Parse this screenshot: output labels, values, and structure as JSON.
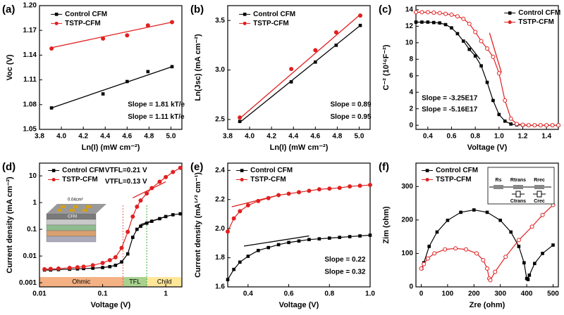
{
  "chart_data": [
    {
      "type": "scatter",
      "panel_label": "(a)",
      "x_label": "Ln(I) (mW cm⁻²)",
      "y_label": "Voc (V)",
      "xlim": [
        3.8,
        5.1
      ],
      "xticks": [
        3.8,
        {
          "value": 4,
          "label": "4.0"
        },
        4.2,
        4.4,
        4.6,
        4.8,
        {
          "value": 5,
          "label": "5.0"
        }
      ],
      "ylim": [
        1.05,
        1.2
      ],
      "yticks": [
        1.05,
        1.08,
        1.11,
        1.14,
        1.17,
        {
          "value": 1.2,
          "label": "1.20"
        }
      ],
      "series": [
        {
          "name": "Control CFM",
          "color": "#000000",
          "marker": "square",
          "x": [
            3.91,
            4.38,
            4.6,
            4.79,
            5.01
          ],
          "values": [
            1.076,
            1.093,
            1.108,
            1.12,
            1.126
          ],
          "fit": {
            "x": [
              3.91,
              5.01
            ],
            "values": [
              1.076,
              1.126
            ]
          }
        },
        {
          "name": "TSTP-CFM",
          "color": "#e02020",
          "marker": "circle",
          "x": [
            3.91,
            4.38,
            4.6,
            4.79,
            5.01
          ],
          "values": [
            1.148,
            1.16,
            1.164,
            1.176,
            1.18
          ],
          "fit": {
            "x": [
              3.91,
              5.01
            ],
            "values": [
              1.149,
              1.18
            ]
          }
        }
      ],
      "annotations": [
        {
          "text": "Slope = 1.81 kT/e",
          "color": "#000000"
        },
        {
          "text": "Slope = 1.11 kT/e",
          "color": "#e02020"
        }
      ]
    },
    {
      "type": "scatter",
      "panel_label": "(b)",
      "x_label": "Ln(I) (mW cm⁻²)",
      "y_label": "Ln(Jsc) (mA cm⁻²)",
      "xlim": [
        3.8,
        5.1
      ],
      "xticks": [
        3.8,
        {
          "value": 4,
          "label": "4.0"
        },
        4.2,
        4.4,
        4.6,
        4.8,
        {
          "value": 5,
          "label": "5.0"
        }
      ],
      "ylim": [
        2.4,
        3.65
      ],
      "yticks": [
        2.5,
        {
          "value": 3,
          "label": "3.0"
        },
        3.5
      ],
      "series": [
        {
          "name": "Control CFM",
          "color": "#000000",
          "marker": "square",
          "x": [
            3.91,
            4.38,
            4.6,
            4.79,
            5.01
          ],
          "values": [
            2.48,
            2.88,
            3.08,
            3.25,
            3.45
          ],
          "fit": {
            "x": [
              3.91,
              5.01
            ],
            "values": [
              2.47,
              3.45
            ]
          }
        },
        {
          "name": "TSTP-CFM",
          "color": "#e02020",
          "marker": "circle",
          "x": [
            3.91,
            4.38,
            4.6,
            4.79,
            5.01
          ],
          "values": [
            2.52,
            3.01,
            3.2,
            3.38,
            3.55
          ],
          "fit": {
            "x": [
              3.91,
              5.01
            ],
            "values": [
              2.51,
              3.56
            ]
          }
        }
      ],
      "annotations": [
        {
          "text": "Slope = 0.89",
          "color": "#000000"
        },
        {
          "text": "Slope = 0.95",
          "color": "#e02020"
        }
      ]
    },
    {
      "type": "line",
      "panel_label": "(c)",
      "x_label": "Voltage (V)",
      "y_label": "C⁻² (10¹⁶F⁻²)",
      "xlim": [
        0.3,
        1.5
      ],
      "xticks": [
        0.4,
        0.6,
        0.8,
        {
          "value": 1,
          "label": "1.0"
        },
        1.2,
        1.4
      ],
      "ylim": [
        -0.5,
        14.5
      ],
      "yticks": [
        0,
        2,
        4,
        6,
        8,
        10,
        12,
        14
      ],
      "series": [
        {
          "name": "Control CFM",
          "color": "#000000",
          "marker": "square",
          "x": [
            0.3,
            0.35,
            0.4,
            0.45,
            0.5,
            0.55,
            0.6,
            0.65,
            0.7,
            0.75,
            0.8,
            0.85,
            0.9,
            0.95,
            1.0,
            1.05,
            1.1,
            1.15,
            1.2,
            1.25,
            1.3,
            1.35,
            1.4,
            1.45,
            1.5
          ],
          "values": [
            12.5,
            12.5,
            12.5,
            12.45,
            12.4,
            12.2,
            11.8,
            11.1,
            10.2,
            9.2,
            8.4,
            7.2,
            5.2,
            3.0,
            1.3,
            0.5,
            0.15,
            0.05,
            0.02,
            0,
            0,
            0,
            0,
            0,
            0
          ],
          "fit": {
            "x": [
              0.72,
              0.84
            ],
            "values": [
              10.2,
              8.0
            ]
          }
        },
        {
          "name": "TSTP-CFM",
          "color": "#e02020",
          "marker": "circle",
          "x": [
            0.3,
            0.35,
            0.4,
            0.45,
            0.5,
            0.55,
            0.6,
            0.65,
            0.7,
            0.75,
            0.8,
            0.85,
            0.9,
            0.95,
            1.0,
            1.05,
            1.1,
            1.15,
            1.2,
            1.25,
            1.3,
            1.35,
            1.4,
            1.45,
            1.5
          ],
          "values": [
            13.7,
            13.7,
            13.7,
            13.65,
            13.6,
            13.5,
            13.4,
            13.2,
            12.9,
            12.3,
            11.3,
            10.2,
            9.3,
            8.3,
            6.3,
            3.0,
            0.8,
            0.15,
            0.05,
            0,
            0,
            0,
            0,
            0,
            0
          ],
          "fit": {
            "x": [
              0.92,
              1.02
            ],
            "values": [
              11.2,
              6.4
            ]
          }
        }
      ],
      "annotations": [
        {
          "text": "Slope = -3.25E17",
          "color": "#000000"
        },
        {
          "text": "Slope = -5.16E17",
          "color": "#e02020"
        }
      ]
    },
    {
      "type": "line",
      "panel_label": "(d)",
      "x_label": "Voltage (V)",
      "y_label": "Current density (mA cm⁻²)",
      "log_x": true,
      "log_y": true,
      "xlim": [
        0.01,
        1.8
      ],
      "xticks": [
        0.01,
        0.1,
        1
      ],
      "ylim": [
        0.0007,
        30
      ],
      "yticks": [
        0.001,
        0.01,
        0.1,
        1,
        10
      ],
      "series": [
        {
          "name": "Control CFM",
          "color": "#000000",
          "marker": "square",
          "x": [
            0.012,
            0.015,
            0.02,
            0.03,
            0.04,
            0.05,
            0.07,
            0.1,
            0.13,
            0.16,
            0.2,
            0.25,
            0.3,
            0.35,
            0.4,
            0.5,
            0.6,
            0.8,
            1.0,
            1.3,
            1.7
          ],
          "values": [
            0.003,
            0.003,
            0.0031,
            0.0032,
            0.0033,
            0.0034,
            0.0035,
            0.0037,
            0.004,
            0.0045,
            0.006,
            0.012,
            0.05,
            0.1,
            0.13,
            0.17,
            0.2,
            0.25,
            0.3,
            0.35,
            0.38
          ],
          "fit": {
            "x": [
              0.4,
              1.0
            ],
            "values": [
              0.15,
              0.3
            ]
          }
        },
        {
          "name": "TSTP-CFM",
          "color": "#e02020",
          "marker": "circle",
          "x": [
            0.012,
            0.015,
            0.02,
            0.03,
            0.04,
            0.05,
            0.07,
            0.1,
            0.13,
            0.16,
            0.2,
            0.25,
            0.3,
            0.35,
            0.4,
            0.5,
            0.6,
            0.8,
            1.0,
            1.3,
            1.7
          ],
          "values": [
            0.0032,
            0.0033,
            0.0034,
            0.0036,
            0.0038,
            0.004,
            0.0045,
            0.0055,
            0.007,
            0.009,
            0.02,
            0.08,
            0.3,
            0.7,
            1.2,
            2.2,
            3.5,
            6,
            9,
            14,
            20
          ],
          "fit": {
            "x": [
              0.3,
              1.0
            ],
            "values": [
              1.5,
              6
            ]
          }
        }
      ],
      "annotations": [
        {
          "text": "VTFL=0.21 V",
          "color": "#000000"
        },
        {
          "text": "VTFL=0.13 V",
          "color": "#e02020"
        }
      ],
      "regions": [
        {
          "label": "Ohmic",
          "from": 0.01,
          "to": 0.21,
          "color": "#f4b183"
        },
        {
          "label": "TFL",
          "from": 0.21,
          "to": 0.5,
          "color": "#a9d18e"
        },
        {
          "label": "Child",
          "from": 0.5,
          "to": 1.8,
          "color": "#ffe699"
        }
      ],
      "inset_labels": [
        "0.04cm²",
        "CFM"
      ]
    },
    {
      "type": "line",
      "panel_label": "(e)",
      "x_label": "Voltage (V)",
      "y_label": "Current density (mA¹ᐟ² cm⁻¹)",
      "xlim": [
        0.3,
        1.0
      ],
      "xticks": [
        0.4,
        0.6,
        0.8,
        {
          "value": 1,
          "label": "1.0"
        }
      ],
      "ylim": [
        1.6,
        2.45
      ],
      "yticks": [
        1.6,
        1.8,
        {
          "value": 2,
          "label": "2.0"
        },
        2.2,
        2.4
      ],
      "series": [
        {
          "name": "Control CFM",
          "color": "#000000",
          "marker": "square",
          "x": [
            0.3,
            0.33,
            0.36,
            0.4,
            0.45,
            0.5,
            0.55,
            0.6,
            0.65,
            0.7,
            0.75,
            0.8,
            0.85,
            0.9,
            0.95,
            1.0
          ],
          "values": [
            1.65,
            1.72,
            1.77,
            1.81,
            1.85,
            1.87,
            1.89,
            1.905,
            1.915,
            1.925,
            1.93,
            1.935,
            1.94,
            1.945,
            1.95,
            1.955
          ],
          "fit": {
            "x": [
              0.38,
              0.7
            ],
            "values": [
              1.88,
              1.95
            ]
          }
        },
        {
          "name": "TSTP-CFM",
          "color": "#e02020",
          "marker": "circle",
          "x": [
            0.3,
            0.33,
            0.36,
            0.4,
            0.45,
            0.5,
            0.55,
            0.6,
            0.65,
            0.7,
            0.75,
            0.8,
            0.85,
            0.9,
            0.95,
            1.0
          ],
          "values": [
            1.98,
            2.07,
            2.12,
            2.16,
            2.19,
            2.21,
            2.23,
            2.24,
            2.25,
            2.26,
            2.27,
            2.275,
            2.28,
            2.29,
            2.295,
            2.3
          ],
          "fit": {
            "x": [
              0.32,
              0.55
            ],
            "values": [
              2.15,
              2.23
            ]
          }
        }
      ],
      "annotations": [
        {
          "text": "Slope = 0.22",
          "color": "#000000"
        },
        {
          "text": "Slope = 0.32",
          "color": "#e02020"
        }
      ]
    },
    {
      "type": "line",
      "panel_label": "(f)",
      "x_label": "Zre (ohm)",
      "y_label": "Zim (ohm)",
      "xlim": [
        -20,
        520
      ],
      "xticks": [
        0,
        100,
        200,
        300,
        400,
        500
      ],
      "ylim": [
        0,
        370
      ],
      "yticks": [
        0,
        100,
        200,
        300
      ],
      "series": [
        {
          "name": "Control CFM",
          "color": "#000000",
          "marker": "square",
          "x": [
            2,
            10,
            30,
            60,
            100,
            150,
            200,
            250,
            300,
            340,
            370,
            390,
            400,
            405,
            410,
            430,
            460,
            500
          ],
          "values": [
            55,
            72,
            121,
            164,
            199,
            223,
            230,
            223,
            199,
            164,
            121,
            72,
            25,
            22,
            35,
            70,
            100,
            125
          ]
        },
        {
          "name": "TSTP-CFM",
          "color": "#e02020",
          "marker": "circle",
          "x": [
            0,
            10,
            25,
            50,
            90,
            130,
            170,
            210,
            235,
            250,
            258,
            262,
            280,
            320,
            370,
            420,
            460,
            500
          ],
          "values": [
            55,
            68,
            85,
            100,
            112,
            115,
            112,
            100,
            80,
            55,
            25,
            20,
            45,
            90,
            140,
            180,
            215,
            245
          ]
        }
      ],
      "circuit_labels": [
        "Rs",
        "Rtrans",
        "Rrec",
        "Ctrans",
        "Crec"
      ]
    }
  ]
}
